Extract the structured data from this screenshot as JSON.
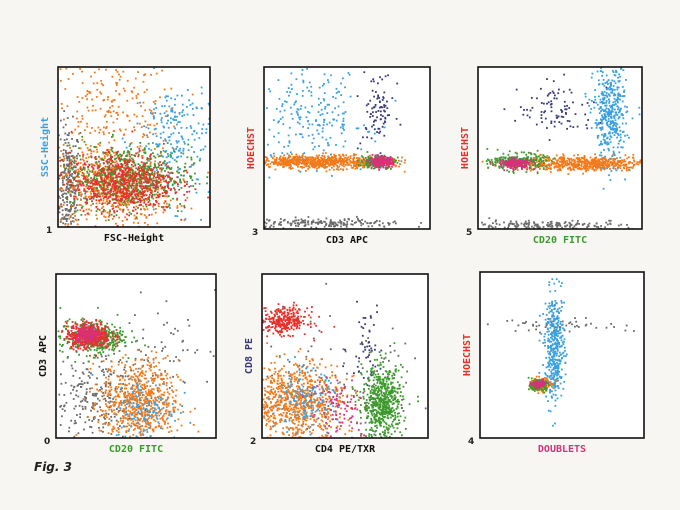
{
  "figure": {
    "caption": "Fig. 3"
  },
  "colors": {
    "blue": "#3aa0de",
    "red": "#e8302a",
    "orange": "#f27a1a",
    "green": "#3c9a2c",
    "magenta": "#d8307a",
    "navy": "#3a3a78",
    "gray": "#6a6a6a",
    "black": "#111111"
  },
  "chart_data": [
    {
      "type": "scatter",
      "panel_number": "1",
      "xlabel": "FSC-Height",
      "ylabel": "SSC-Height",
      "xlabel_color": "#111111",
      "ylabel_color": "#3aa0de",
      "series": [
        {
          "color": "#6a6a6a",
          "clusters": [
            {
              "cx": 0.06,
              "cy": 0.28,
              "sx": 0.04,
              "sy": 0.18,
              "n": 260
            }
          ]
        },
        {
          "color": "#f27a1a",
          "clusters": [
            {
              "cx": 0.35,
              "cy": 0.7,
              "sx": 0.22,
              "sy": 0.2,
              "n": 260
            },
            {
              "cx": 0.35,
              "cy": 0.25,
              "sx": 0.2,
              "sy": 0.12,
              "n": 600
            }
          ]
        },
        {
          "color": "#3aa0de",
          "clusters": [
            {
              "cx": 0.78,
              "cy": 0.55,
              "sx": 0.14,
              "sy": 0.2,
              "n": 240
            }
          ]
        },
        {
          "color": "#3c9a2c",
          "clusters": [
            {
              "cx": 0.45,
              "cy": 0.32,
              "sx": 0.2,
              "sy": 0.1,
              "n": 600
            }
          ]
        },
        {
          "color": "#e8302a",
          "clusters": [
            {
              "cx": 0.42,
              "cy": 0.28,
              "sx": 0.17,
              "sy": 0.09,
              "n": 700
            }
          ]
        }
      ]
    },
    {
      "type": "scatter",
      "panel_number": "3",
      "xlabel": "CD3 APC",
      "ylabel": "HOECHST",
      "xlabel_color": "#111111",
      "ylabel_color": "#e8302a",
      "series": [
        {
          "color": "#6a6a6a",
          "clusters": [
            {
              "cx": 0.35,
              "cy": 0.04,
              "sx": 0.25,
              "sy": 0.015,
              "n": 200
            }
          ]
        },
        {
          "color": "#3aa0de",
          "clusters": [
            {
              "cx": 0.28,
              "cy": 0.7,
              "sx": 0.17,
              "sy": 0.16,
              "n": 230
            }
          ]
        },
        {
          "color": "#3a3a78",
          "clusters": [
            {
              "cx": 0.68,
              "cy": 0.74,
              "sx": 0.05,
              "sy": 0.12,
              "n": 90
            }
          ]
        },
        {
          "color": "#f27a1a",
          "clusters": [
            {
              "cx": 0.33,
              "cy": 0.42,
              "sx": 0.2,
              "sy": 0.02,
              "n": 700
            }
          ]
        },
        {
          "color": "#3c9a2c",
          "clusters": [
            {
              "cx": 0.68,
              "cy": 0.42,
              "sx": 0.05,
              "sy": 0.02,
              "n": 200
            }
          ]
        },
        {
          "color": "#d8307a",
          "clusters": [
            {
              "cx": 0.7,
              "cy": 0.42,
              "sx": 0.035,
              "sy": 0.015,
              "n": 200
            }
          ]
        }
      ]
    },
    {
      "type": "scatter",
      "panel_number": "5",
      "xlabel": "CD20 FITC",
      "ylabel": "HOECHST",
      "xlabel_color": "#3c9a2c",
      "ylabel_color": "#e8302a",
      "series": [
        {
          "color": "#6a6a6a",
          "clusters": [
            {
              "cx": 0.4,
              "cy": 0.03,
              "sx": 0.3,
              "sy": 0.015,
              "n": 180
            }
          ]
        },
        {
          "color": "#3a3a78",
          "clusters": [
            {
              "cx": 0.48,
              "cy": 0.74,
              "sx": 0.12,
              "sy": 0.08,
              "n": 90
            }
          ]
        },
        {
          "color": "#3aa0de",
          "clusters": [
            {
              "cx": 0.8,
              "cy": 0.7,
              "sx": 0.05,
              "sy": 0.16,
              "n": 420
            }
          ]
        },
        {
          "color": "#f27a1a",
          "clusters": [
            {
              "cx": 0.62,
              "cy": 0.41,
              "sx": 0.22,
              "sy": 0.022,
              "n": 600
            }
          ]
        },
        {
          "color": "#3c9a2c",
          "clusters": [
            {
              "cx": 0.24,
              "cy": 0.42,
              "sx": 0.08,
              "sy": 0.025,
              "n": 240
            }
          ]
        },
        {
          "color": "#d8307a",
          "clusters": [
            {
              "cx": 0.22,
              "cy": 0.41,
              "sx": 0.05,
              "sy": 0.015,
              "n": 180
            }
          ]
        }
      ]
    },
    {
      "type": "scatter",
      "panel_number": "0",
      "xlabel": "CD20 FITC",
      "ylabel": "CD3 APC",
      "xlabel_color": "#3c9a2c",
      "ylabel_color": "#111111",
      "series": [
        {
          "color": "#6a6a6a",
          "clusters": [
            {
              "cx": 0.22,
              "cy": 0.25,
              "sx": 0.15,
              "sy": 0.13,
              "n": 260
            },
            {
              "cx": 0.7,
              "cy": 0.55,
              "sx": 0.15,
              "sy": 0.15,
              "n": 60
            }
          ]
        },
        {
          "color": "#f27a1a",
          "clusters": [
            {
              "cx": 0.52,
              "cy": 0.22,
              "sx": 0.12,
              "sy": 0.13,
              "n": 700
            }
          ]
        },
        {
          "color": "#3aa0de",
          "clusters": [
            {
              "cx": 0.56,
              "cy": 0.18,
              "sx": 0.1,
              "sy": 0.1,
              "n": 120
            }
          ]
        },
        {
          "color": "#3c9a2c",
          "clusters": [
            {
              "cx": 0.22,
              "cy": 0.62,
              "sx": 0.1,
              "sy": 0.05,
              "n": 400
            }
          ]
        },
        {
          "color": "#e8302a",
          "clusters": [
            {
              "cx": 0.2,
              "cy": 0.63,
              "sx": 0.07,
              "sy": 0.04,
              "n": 400
            }
          ]
        },
        {
          "color": "#d8307a",
          "clusters": [
            {
              "cx": 0.2,
              "cy": 0.63,
              "sx": 0.04,
              "sy": 0.025,
              "n": 150
            }
          ]
        }
      ]
    },
    {
      "type": "scatter",
      "panel_number": "2",
      "xlabel": "CD4 PE/TXR",
      "ylabel": "CD8 PE",
      "xlabel_color": "#111111",
      "ylabel_color": "#3a3a78",
      "series": [
        {
          "color": "#6a6a6a",
          "clusters": [
            {
              "cx": 0.5,
              "cy": 0.3,
              "sx": 0.3,
              "sy": 0.25,
              "n": 100
            }
          ]
        },
        {
          "color": "#3a3a78",
          "clusters": [
            {
              "cx": 0.62,
              "cy": 0.58,
              "sx": 0.05,
              "sy": 0.12,
              "n": 50
            }
          ]
        },
        {
          "color": "#e8302a",
          "clusters": [
            {
              "cx": 0.13,
              "cy": 0.72,
              "sx": 0.07,
              "sy": 0.04,
              "n": 300
            }
          ]
        },
        {
          "color": "#f27a1a",
          "clusters": [
            {
              "cx": 0.2,
              "cy": 0.22,
              "sx": 0.14,
              "sy": 0.12,
              "n": 800
            }
          ]
        },
        {
          "color": "#3aa0de",
          "clusters": [
            {
              "cx": 0.25,
              "cy": 0.22,
              "sx": 0.1,
              "sy": 0.1,
              "n": 150
            }
          ]
        },
        {
          "color": "#d8307a",
          "clusters": [
            {
              "cx": 0.48,
              "cy": 0.18,
              "sx": 0.1,
              "sy": 0.1,
              "n": 100
            }
          ]
        },
        {
          "color": "#3c9a2c",
          "clusters": [
            {
              "cx": 0.72,
              "cy": 0.22,
              "sx": 0.06,
              "sy": 0.11,
              "n": 600
            }
          ]
        }
      ]
    },
    {
      "type": "scatter",
      "panel_number": "4",
      "xlabel": "DOUBLETS",
      "ylabel": "HOECHST",
      "xlabel_color": "#d8307a",
      "ylabel_color": "#e8302a",
      "series": [
        {
          "color": "#6a6a6a",
          "clusters": [
            {
              "cx": 0.55,
              "cy": 0.68,
              "sx": 0.3,
              "sy": 0.02,
              "n": 60
            }
          ]
        },
        {
          "color": "#3aa0de",
          "clusters": [
            {
              "cx": 0.45,
              "cy": 0.55,
              "sx": 0.03,
              "sy": 0.16,
              "n": 400
            }
          ]
        },
        {
          "color": "#f27a1a",
          "clusters": [
            {
              "cx": 0.36,
              "cy": 0.33,
              "sx": 0.03,
              "sy": 0.02,
              "n": 200
            }
          ]
        },
        {
          "color": "#3c9a2c",
          "clusters": [
            {
              "cx": 0.35,
              "cy": 0.32,
              "sx": 0.025,
              "sy": 0.015,
              "n": 120
            }
          ]
        },
        {
          "color": "#d8307a",
          "clusters": [
            {
              "cx": 0.35,
              "cy": 0.33,
              "sx": 0.02,
              "sy": 0.01,
              "n": 100
            }
          ]
        }
      ]
    }
  ]
}
